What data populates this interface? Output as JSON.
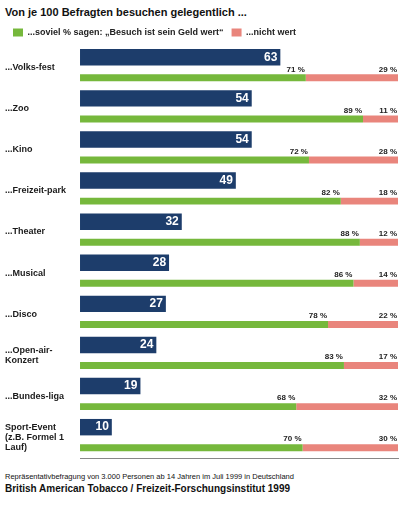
{
  "chart_data": {
    "type": "bar",
    "orientation": "horizontal",
    "title": "Von je 100 Befragten besuchen gelegentlich ...",
    "note": "Repräsentativbefragung von 3.000 Personen ab 14 Jahren im Juli 1999 in Deutschland",
    "source": "British American Tobacco / Freizeit-Forschungsinstitut 1999",
    "categories": [
      "...Volks-fest",
      "...Zoo",
      "...Kino",
      "...Freizeit-park",
      "...Theater",
      "...Musical",
      "...Disco",
      "...Open-air-Konzert",
      "...Bundes-liga",
      "Sport-Event (z.B. Formel 1 Lauf)"
    ],
    "series": [
      {
        "color": "#1d3d6b",
        "data_labels": true,
        "values": [
          63,
          54,
          54,
          49,
          32,
          28,
          27,
          24,
          19,
          10
        ]
      },
      {
        "name": "...soviel % sagen: „Besuch ist sein Geld wert“",
        "color": "#76b83c",
        "stacked": true,
        "values": [
          71,
          89,
          72,
          82,
          88,
          86,
          78,
          83,
          68,
          70
        ],
        "value_labels": [
          "71 %",
          "89 %",
          "72 %",
          "82 %",
          "88 %",
          "86 %",
          "78 %",
          "83 %",
          "68 %",
          "70 %"
        ]
      },
      {
        "name": "...nicht wert",
        "color": "#e9857c",
        "stacked": true,
        "values": [
          29,
          11,
          28,
          18,
          12,
          14,
          22,
          17,
          32,
          30
        ],
        "value_labels": [
          "29 %",
          "11 %",
          "28 %",
          "18 %",
          "12 %",
          "14 %",
          "22 %",
          "17 %",
          "32 %",
          "30 %"
        ]
      }
    ],
    "xlim": [
      0,
      100
    ],
    "tick_labels": "y",
    "grid": false,
    "legend": "top"
  }
}
